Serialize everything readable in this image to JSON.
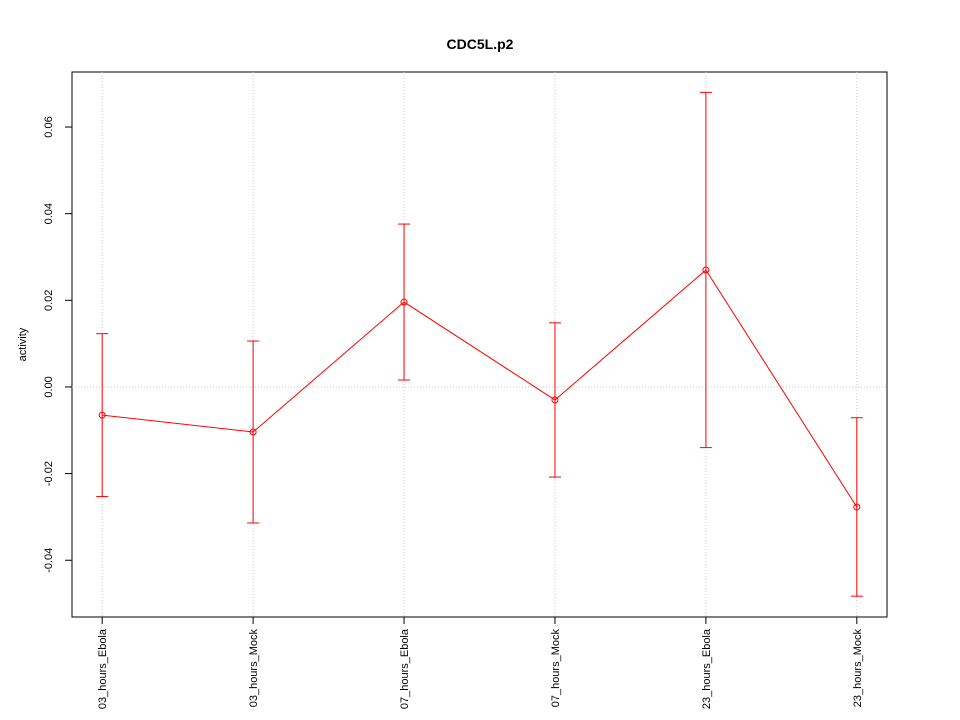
{
  "chart_data": {
    "type": "line",
    "title": "CDC5L.p2",
    "ylabel": "activity",
    "categories": [
      "03_hours_Ebola",
      "03_hours_Mock",
      "07_hours_Ebola",
      "07_hours_Mock",
      "23_hours_Ebola",
      "23_hours_Mock"
    ],
    "values": [
      -0.0065,
      -0.0104,
      0.0196,
      -0.003,
      0.027,
      -0.0277
    ],
    "errors": [
      0.0188,
      0.021,
      0.018,
      0.0178,
      0.041,
      0.0206
    ],
    "color": "#ff0000",
    "ylim": [
      -0.0531,
      0.0727
    ],
    "yticks": [
      -0.04,
      -0.02,
      {
        "value": 0,
        "label": "0.00"
      },
      0.02,
      0.04,
      0.06
    ],
    "grid": true
  }
}
